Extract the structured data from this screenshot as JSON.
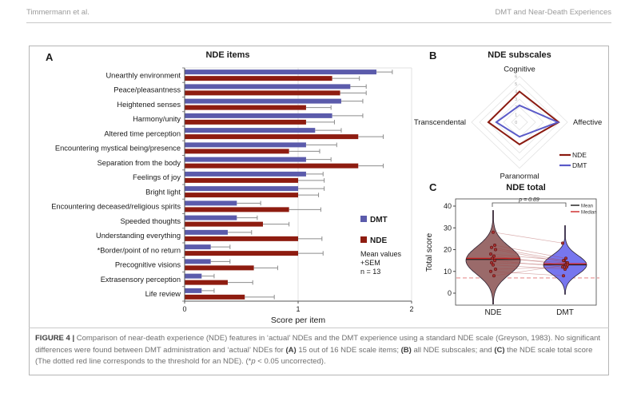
{
  "header": {
    "left": "Timmermann et al.",
    "right": "DMT and Near-Death Experiences"
  },
  "panels": {
    "a": "A",
    "b": "B",
    "c": "C"
  },
  "caption_segments": [
    {
      "t": "FIGURE 4 | ",
      "b": true
    },
    {
      "t": "Comparison of near-death experience (NDE) features in ‘actual’ NDEs and the DMT experience using a standard NDE scale (Greyson, 1983). No significant differences were found between DMT administration and ‘actual’ NDEs for "
    },
    {
      "t": "(A)",
      "b": true
    },
    {
      "t": " 15 out of 16 NDE scale items; "
    },
    {
      "t": "(B)",
      "b": true
    },
    {
      "t": " all NDE subscales; and "
    },
    {
      "t": "(C)",
      "b": true
    },
    {
      "t": " the NDE scale total score (The dotted red line corresponds to the threshold for an NDE). (*"
    },
    {
      "t": "p",
      "i": true
    },
    {
      "t": " < 0.05 uncorrected)."
    }
  ],
  "colors": {
    "dmt_blue": "#5b5bab",
    "nde_red": "#8e1c10",
    "radar_nde": "#8b1a10",
    "radar_dmt": "#5a5ac8",
    "violin_nde_fill": "#9a6a6a",
    "violin_dmt_fill": "#7776ee",
    "mean_line": "#1a1a1a",
    "median_line": "#cc2525",
    "threshold_dash": "#e89090",
    "error_bar": "#8c8c8c"
  },
  "chart_data": [
    {
      "id": "A",
      "type": "bar",
      "orientation": "horizontal",
      "title": "NDE items",
      "xlabel": "Score per item",
      "xlim": [
        0,
        2
      ],
      "xticks": [
        0,
        1,
        2
      ],
      "grid": "light vertical at 1 and 2",
      "categories": [
        "Unearthly environment",
        "Peace/pleasantness",
        "Heightened senses",
        "Harmony/unity",
        "Altered time perception",
        "Encountering mystical being/presence",
        "Separation from the body",
        "Feelings of joy",
        "Bright light",
        "Encountering deceased/religious spirits",
        "Speeded thoughts",
        "Understanding everything",
        "*Border/point of no return",
        "Precognitive visions",
        "Extrasensory perception",
        "Life review"
      ],
      "series": [
        {
          "name": "DMT",
          "values": [
            1.69,
            1.46,
            1.38,
            1.3,
            1.15,
            1.07,
            1.07,
            1.07,
            1.0,
            0.46,
            0.46,
            0.38,
            0.23,
            0.23,
            0.15,
            0.15
          ],
          "sem": [
            0.14,
            0.14,
            0.19,
            0.27,
            0.23,
            0.27,
            0.22,
            0.15,
            0.23,
            0.21,
            0.18,
            0.21,
            0.17,
            0.17,
            0.11,
            0.11
          ]
        },
        {
          "name": "NDE",
          "values": [
            1.3,
            1.37,
            1.07,
            1.07,
            1.53,
            0.92,
            1.53,
            1.0,
            1.0,
            0.92,
            0.69,
            1.0,
            1.0,
            0.61,
            0.38,
            0.53
          ],
          "sem": [
            0.24,
            0.23,
            0.22,
            0.25,
            0.22,
            0.27,
            0.22,
            0.23,
            0.18,
            0.28,
            0.23,
            0.21,
            0.22,
            0.21,
            0.22,
            0.26
          ]
        }
      ],
      "legend_note": [
        "Mean values",
        "+SEM",
        "n = 13"
      ]
    },
    {
      "id": "B",
      "type": "radar",
      "title": "NDE subscales",
      "axes": [
        "Cognitive",
        "Affective",
        "Paranormal",
        "Transcendental"
      ],
      "rmax": 6,
      "rticks": [
        0,
        1,
        2,
        3,
        4,
        5,
        6
      ],
      "series": [
        {
          "name": "NDE",
          "values": [
            4.0,
            4.9,
            2.9,
            3.9
          ]
        },
        {
          "name": "DMT",
          "values": [
            2.2,
            4.8,
            1.9,
            2.9
          ]
        }
      ],
      "legend_position": "bottom-right"
    },
    {
      "id": "C",
      "type": "violin",
      "title": "NDE total",
      "ylabel": "Total score",
      "ylim": [
        -7,
        44
      ],
      "yticks": [
        0,
        10,
        20,
        30,
        40
      ],
      "categories": [
        "NDE",
        "DMT"
      ],
      "p_label": "p = 0.89",
      "threshold_line": 7,
      "legend": [
        {
          "label": "Mean"
        },
        {
          "label": "Median"
        }
      ],
      "violins": [
        {
          "name": "NDE",
          "mean": 15.5,
          "median": 16,
          "range": [
            -5,
            38
          ],
          "peak": 15,
          "spread": 6.3
        },
        {
          "name": "DMT",
          "mean": 13,
          "median": 13.5,
          "range": [
            -0.5,
            31
          ],
          "peak": 13,
          "spread": 4.3
        }
      ],
      "paired_points": [
        [
          28,
          23
        ],
        [
          22,
          16
        ],
        [
          21,
          15
        ],
        [
          20,
          14
        ],
        [
          18,
          15
        ],
        [
          17,
          13
        ],
        [
          16,
          14
        ],
        [
          15,
          12
        ],
        [
          14,
          13
        ],
        [
          13,
          11
        ],
        [
          11,
          12
        ],
        [
          10,
          8
        ],
        [
          8,
          13
        ]
      ]
    }
  ]
}
